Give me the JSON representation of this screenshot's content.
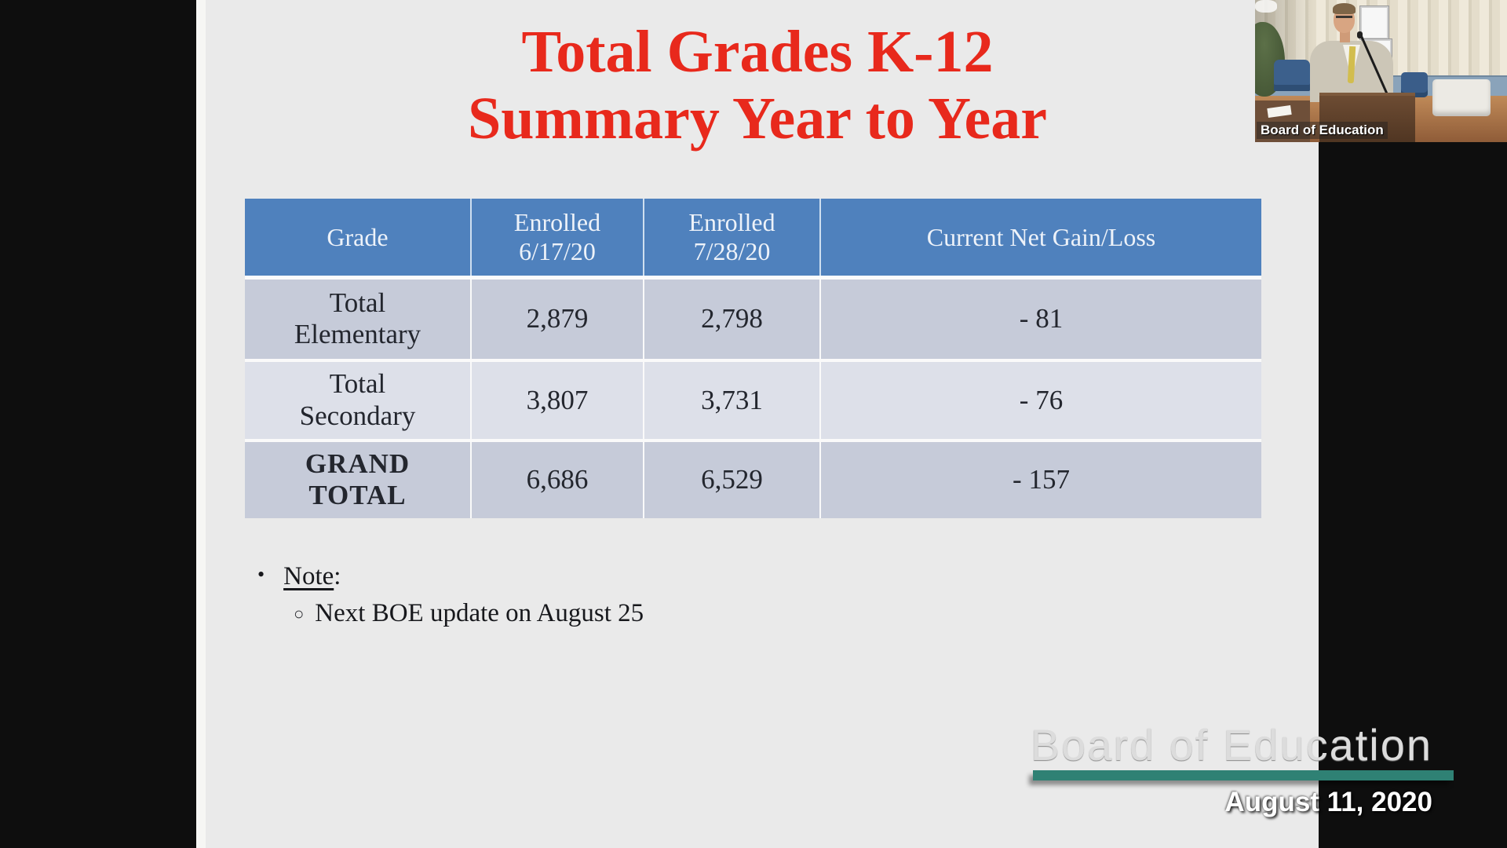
{
  "colors": {
    "slide_bg": "#eaeaea",
    "title_red": "#e8291c",
    "table_header_bg": "#4f81bd",
    "row_dark": "#c6cbd9",
    "row_light": "#dde0e9",
    "teal": "#2f8174"
  },
  "slide": {
    "title_line1": "Total Grades K-12",
    "title_line2": "Summary Year to Year"
  },
  "table": {
    "headers": [
      {
        "line1": "Grade"
      },
      {
        "line1": "Enrolled",
        "line2": "6/17/20"
      },
      {
        "line1": "Enrolled",
        "line2": "7/28/20"
      },
      {
        "line1": "Current Net Gain/Loss"
      }
    ],
    "rows": [
      {
        "label_line1": "Total",
        "label_line2": "Elementary",
        "enrolled_jun": "2,879",
        "enrolled_jul": "2,798",
        "net": "- 81"
      },
      {
        "label_line1": "Total",
        "label_line2": "Secondary",
        "enrolled_jun": "3,807",
        "enrolled_jul": "3,731",
        "net": "- 76"
      },
      {
        "label_line1": "GRAND",
        "label_line2": "TOTAL",
        "enrolled_jun": "6,686",
        "enrolled_jul": "6,529",
        "net": "- 157"
      }
    ]
  },
  "note": {
    "bullet": "•",
    "label": "Note",
    "colon": ":",
    "sub_bullet": "○",
    "text": "Next BOE update on August 25"
  },
  "webcam": {
    "caption": "Board of Education"
  },
  "watermark": {
    "title": "Board of Education",
    "date": "August 11, 2020"
  }
}
